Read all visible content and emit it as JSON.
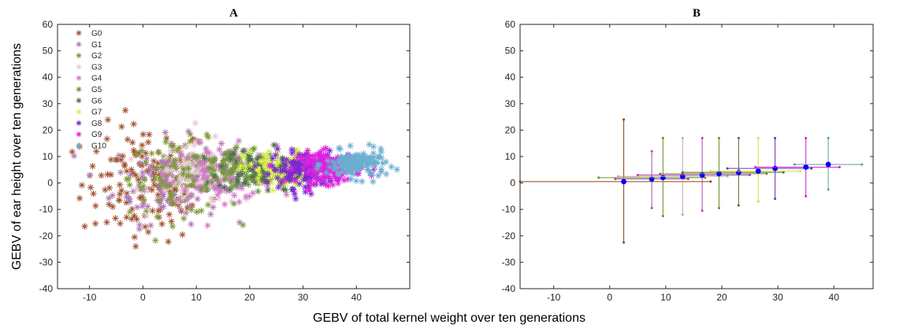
{
  "xlabel": "GEBV of total kernel weight over ten generations",
  "ylabel": "GEBV of ear height over ten generations",
  "chart_data": [
    {
      "panel": "A",
      "title": "A",
      "type": "scatter",
      "marker": "asterisk",
      "xlim": [
        -16,
        50
      ],
      "ylim": [
        -40,
        60
      ],
      "xticks": [
        -10,
        0,
        10,
        20,
        30,
        40
      ],
      "yticks": [
        -40,
        -30,
        -20,
        -10,
        0,
        10,
        20,
        30,
        40,
        50,
        60
      ],
      "grid": false,
      "legend_position": "top-left",
      "series": [
        {
          "name": "G0",
          "color": "#a0522d",
          "cx": 0.5,
          "cy": 0,
          "sx": 6.0,
          "sy": 11.0,
          "n": 140
        },
        {
          "name": "G1",
          "color": "#b07ab0",
          "cx": 4.5,
          "cy": 1,
          "sx": 5.0,
          "sy": 8.0,
          "n": 110
        },
        {
          "name": "G2",
          "color": "#7f9a3a",
          "cx": 7.5,
          "cy": 2,
          "sx": 5.0,
          "sy": 7.0,
          "n": 110
        },
        {
          "name": "G3",
          "color": "#e8c8d8",
          "cx": 12,
          "cy": 3,
          "sx": 5.0,
          "sy": 6.0,
          "n": 110
        },
        {
          "name": "G4",
          "color": "#d07ac8",
          "cx": 15,
          "cy": 4,
          "sx": 5.0,
          "sy": 5.0,
          "n": 110
        },
        {
          "name": "G5",
          "color": "#6f9a3a",
          "cx": 18,
          "cy": 5,
          "sx": 5.0,
          "sy": 4.5,
          "n": 110
        },
        {
          "name": "G6",
          "color": "#4f6f4f",
          "cx": 22,
          "cy": 5,
          "sx": 4.0,
          "sy": 4.0,
          "n": 100
        },
        {
          "name": "G7",
          "color": "#d8f050",
          "cx": 26,
          "cy": 5,
          "sx": 3.5,
          "sy": 3.5,
          "n": 110
        },
        {
          "name": "G8",
          "color": "#7a2ad0",
          "cx": 30,
          "cy": 5,
          "sx": 3.0,
          "sy": 3.5,
          "n": 140
        },
        {
          "name": "G9",
          "color": "#e020e0",
          "cx": 35,
          "cy": 6,
          "sx": 3.0,
          "sy": 3.0,
          "n": 140
        },
        {
          "name": "G10",
          "color": "#6aaed0",
          "cx": 40,
          "cy": 7,
          "sx": 2.8,
          "sy": 2.6,
          "n": 140
        }
      ]
    },
    {
      "panel": "B",
      "title": "B",
      "type": "errorbar",
      "xlim": [
        -16,
        47
      ],
      "ylim": [
        -40,
        60
      ],
      "xticks": [
        -10,
        0,
        10,
        20,
        30,
        40
      ],
      "yticks": [
        -40,
        -30,
        -20,
        -10,
        0,
        10,
        20,
        30,
        40,
        50,
        60
      ],
      "grid": false,
      "mean_marker_color": "#0000ff",
      "points": [
        {
          "x": 2.5,
          "y": 0.5,
          "xmin": -16,
          "xmax": 18,
          "ymin": -22.5,
          "ymax": 24,
          "color": "#8b4513"
        },
        {
          "x": 7.5,
          "y": 1.5,
          "xmin": 1,
          "xmax": 14,
          "ymin": -9.5,
          "ymax": 12,
          "color": "#a050a0"
        },
        {
          "x": 9.5,
          "y": 2,
          "xmin": -2,
          "xmax": 17,
          "ymin": -12.5,
          "ymax": 17,
          "color": "#6b8e23"
        },
        {
          "x": 13,
          "y": 2.5,
          "xmin": 1.5,
          "xmax": 21,
          "ymin": -12,
          "ymax": 17,
          "color": "#c8a0b4"
        },
        {
          "x": 16.5,
          "y": 3,
          "xmin": 5,
          "xmax": 25,
          "ymin": -10.5,
          "ymax": 17,
          "color": "#b040b0"
        },
        {
          "x": 19.5,
          "y": 3.5,
          "xmin": 9,
          "xmax": 28,
          "ymin": -9.5,
          "ymax": 17,
          "color": "#6b8e23"
        },
        {
          "x": 23,
          "y": 4,
          "xmin": 13,
          "xmax": 31,
          "ymin": -8.5,
          "ymax": 17,
          "color": "#556b2f"
        },
        {
          "x": 26.5,
          "y": 4.5,
          "xmin": 18,
          "xmax": 34,
          "ymin": -7,
          "ymax": 17,
          "color": "#d0e040"
        },
        {
          "x": 29.5,
          "y": 5.5,
          "xmin": 21,
          "xmax": 36,
          "ymin": -6,
          "ymax": 17,
          "color": "#7030b0"
        },
        {
          "x": 35,
          "y": 6,
          "xmin": 26,
          "xmax": 41,
          "ymin": -5,
          "ymax": 17,
          "color": "#d020d0"
        },
        {
          "x": 39,
          "y": 7,
          "xmin": 33,
          "xmax": 45,
          "ymin": -2.5,
          "ymax": 17,
          "color": "#5f9ea0"
        }
      ]
    }
  ]
}
